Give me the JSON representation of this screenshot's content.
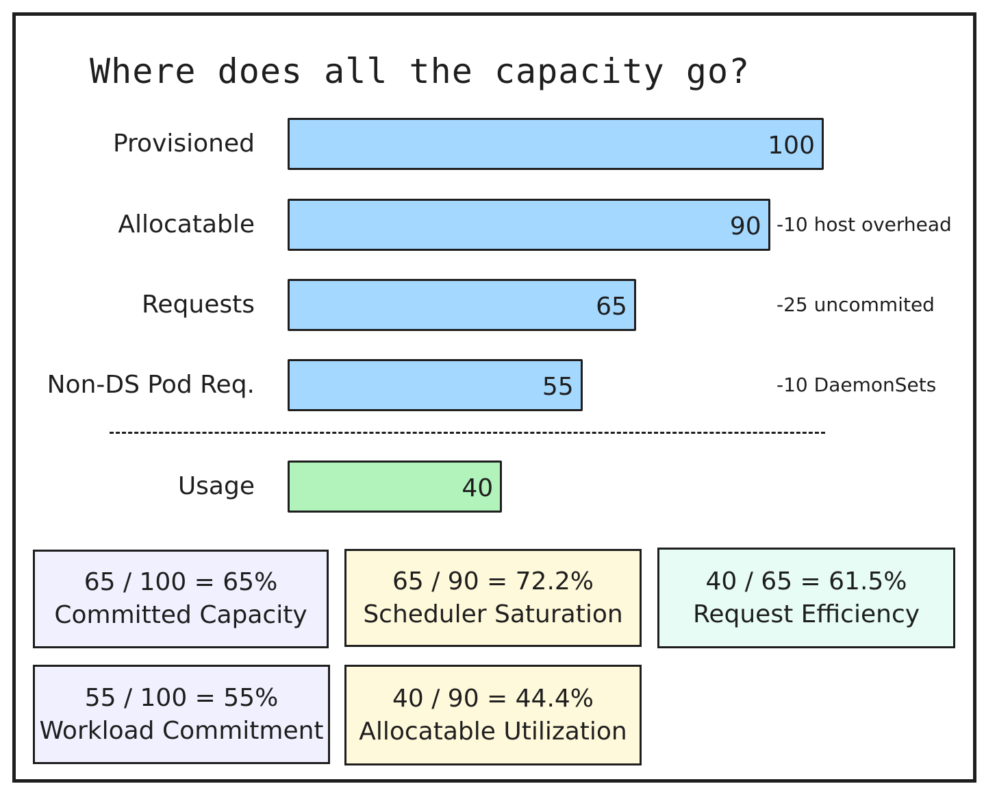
{
  "chart_data": {
    "type": "bar",
    "title": "Where does all the capacity go?",
    "categories": [
      "Provisioned",
      "Allocatable",
      "Requests",
      "Non-DS Pod Req.",
      "Usage"
    ],
    "values": [
      100,
      90,
      65,
      55,
      40
    ],
    "bar_colors": [
      "#a5d8ff",
      "#a5d8ff",
      "#a5d8ff",
      "#a5d8ff",
      "#b2f2bb"
    ],
    "annotations": [
      "",
      "-10 host overhead",
      "-25 uncommited",
      "-10 DaemonSets",
      ""
    ],
    "xlim": [
      0,
      100
    ]
  },
  "metrics": [
    {
      "formula": "65 / 100 = 65%",
      "label": "Committed Capacity",
      "bg": "#f0f0ff"
    },
    {
      "formula": "65 / 90 = 72.2%",
      "label": "Scheduler Saturation",
      "bg": "#fff9db"
    },
    {
      "formula": "40 / 65 = 61.5%",
      "label": "Request Efficiency",
      "bg": "#e6fcf5"
    },
    {
      "formula": "55 / 100 = 55%",
      "label": "Workload Commitment",
      "bg": "#f0f0ff"
    },
    {
      "formula": "40 / 90 = 44.4%",
      "label": "Allocatable Utilization",
      "bg": "#fff9db"
    }
  ]
}
